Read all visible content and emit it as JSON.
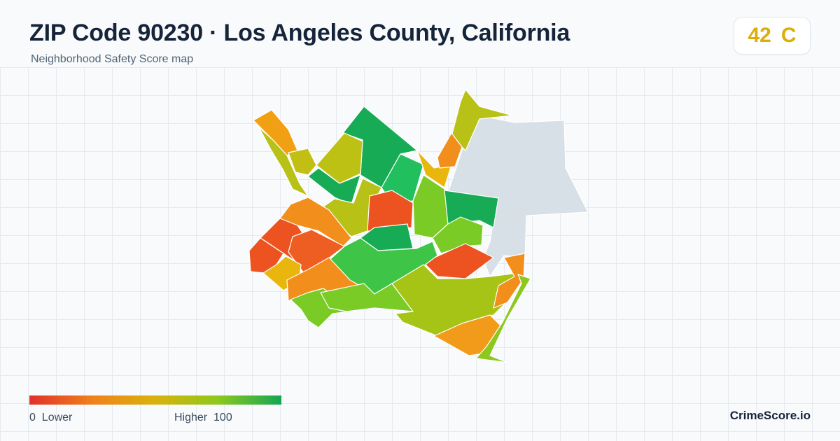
{
  "header": {
    "title": "ZIP Code 90230 · Los Angeles County, California",
    "subtitle": "Neighborhood Safety Score map"
  },
  "score": {
    "value": "42",
    "grade": "C",
    "color": "#dcae0c"
  },
  "legend": {
    "min_label": "0  Lower",
    "max_label": "Higher  100",
    "colors": [
      "#e0302a",
      "#f0811c",
      "#d9b20c",
      "#8cc81e",
      "#14a653"
    ]
  },
  "brand": "CrimeScore.io",
  "map": {
    "palette": {
      "red": "#ec5320",
      "orange": "#f28e1c",
      "amber": "#e9b60e",
      "olive": "#b8c116",
      "lime": "#9cc618",
      "light-green": "#7acb25",
      "green": "#3ec548",
      "dark-green": "#16ab54",
      "no-data": "#d7dfe7"
    }
  }
}
